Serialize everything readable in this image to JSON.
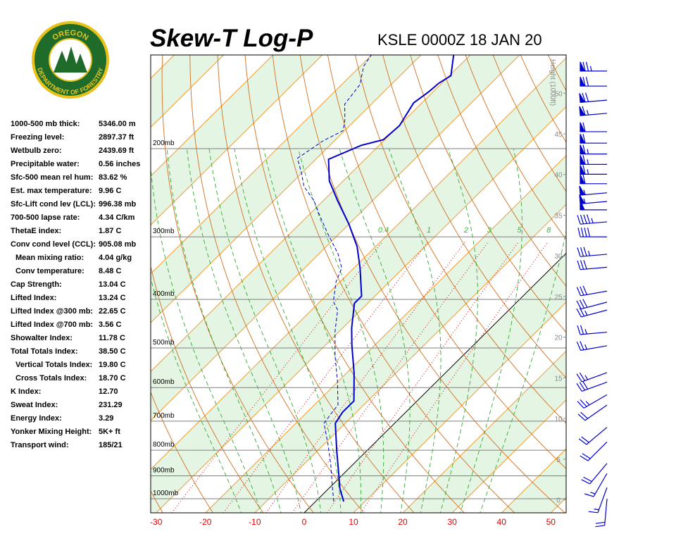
{
  "logo": {
    "top": "OREGON",
    "bottom": "DEPARTMENT OF FORESTRY"
  },
  "indices": [
    {
      "label": "1000-500 mb thick:",
      "value": "5346.00 m"
    },
    {
      "label": "Freezing level:",
      "value": "2897.37 ft"
    },
    {
      "label": "Wetbulb zero:",
      "value": "2439.69 ft"
    },
    {
      "label": "Precipitable water:",
      "value": "0.56 inches"
    },
    {
      "label": "Sfc-500 mean rel hum:",
      "value": "83.62 %"
    },
    {
      "label": "Est. max temperature:",
      "value": "9.96 C"
    },
    {
      "label": "Sfc-Lift cond lev (LCL):",
      "value": "996.38 mb"
    },
    {
      "label": "700-500 lapse rate:",
      "value": "4.34 C/km"
    },
    {
      "label": "ThetaE index:",
      "value": "1.87 C"
    },
    {
      "label": "Conv cond level (CCL):",
      "value": "905.08 mb"
    },
    {
      "label": "Mean mixing ratio:",
      "value": "4.04 g/kg"
    },
    {
      "label": "Conv temperature:",
      "value": "8.48 C"
    },
    {
      "label": "Cap Strength:",
      "value": "13.04 C"
    },
    {
      "label": "Lifted Index:",
      "value": "13.24 C"
    },
    {
      "label": "Lifted Index @300 mb:",
      "value": "22.65 C"
    },
    {
      "label": "Lifted Index @700 mb:",
      "value": "3.56 C"
    },
    {
      "label": "Showalter Index:",
      "value": "11.78 C"
    },
    {
      "label": "Total Totals Index:",
      "value": "38.50 C"
    },
    {
      "label": "Vertical Totals Index:",
      "value": "19.80 C"
    },
    {
      "label": "Cross Totals Index:",
      "value": "18.70 C"
    },
    {
      "label": "K Index:",
      "value": "12.70"
    },
    {
      "label": "Sweat Index:",
      "value": "231.29"
    },
    {
      "label": "Energy Index:",
      "value": "3.29"
    },
    {
      "label": "Yonker Mixing Height:",
      "value": "5K+ ft"
    },
    {
      "label": "Transport wind:",
      "value": "185/21"
    }
  ],
  "chart_data": {
    "type": "skew-t",
    "title": "Skew-T Log-P",
    "subtitle": "KSLE 0000Z 18 JAN 20",
    "y2label": "Height (1000ft)",
    "xlim": [
      -31.1,
      53.1
    ],
    "xticks": [
      -30,
      -20,
      -10,
      0,
      10,
      20,
      30,
      40,
      50
    ],
    "ylim": [
      1067,
      130
    ],
    "log_y": true,
    "yticks": [
      {
        "value": 1000,
        "label": "1000mb"
      },
      {
        "value": 900,
        "label": "900mb"
      },
      {
        "value": 800,
        "label": "800mb"
      },
      {
        "value": 700,
        "label": "700mb"
      },
      {
        "value": 600,
        "label": "600mb"
      },
      {
        "value": 500,
        "label": "500mb"
      },
      {
        "value": 400,
        "label": "400mb"
      },
      {
        "value": 300,
        "label": "300mb"
      },
      {
        "value": 200,
        "label": "200mb"
      }
    ],
    "y2lim": [
      -1.6,
      54.7
    ],
    "y2ticks": [
      0,
      5,
      10,
      15,
      20,
      25,
      30,
      35,
      40,
      45,
      50
    ],
    "mixing_ratios": [
      0.4,
      1,
      2,
      3,
      5,
      8
    ],
    "series": [
      {
        "color": "#0000cc",
        "dashed": false,
        "pressure": [
          1013,
          953,
          884,
          802,
          707,
          672,
          638,
          562,
          494,
          456,
          407,
          394,
          346,
          314,
          283,
          254,
          232,
          210,
          197,
          192,
          180,
          162,
          154,
          148,
          143,
          130
        ],
        "values": [
          5.7,
          2.2,
          -1.4,
          -6.1,
          -12.0,
          -12.8,
          -12.8,
          -18.4,
          -24.6,
          -28.2,
          -32.7,
          -32.7,
          -38.8,
          -43.7,
          -50.0,
          -57.1,
          -62.8,
          -67.4,
          -63.6,
          -60.3,
          -59.9,
          -61.7,
          -60.9,
          -60.6,
          -59.7,
          -63.4
        ]
      },
      {
        "color": "#0000cc",
        "dashed": true,
        "pressure": [
          1013,
          943,
          856,
          777,
          707,
          678,
          650,
          581,
          518,
          463,
          420,
          404,
          369,
          346,
          324,
          294,
          271,
          254,
          238,
          224,
          209,
          199,
          193,
          184,
          175,
          163,
          149,
          137,
          130
        ],
        "values": [
          3.7,
          0.2,
          -4.4,
          -9.3,
          -14.3,
          -14.8,
          -15.2,
          -20.3,
          -25.9,
          -30.9,
          -34.7,
          -37.3,
          -40.8,
          -42.5,
          -46.2,
          -52.7,
          -57.9,
          -61.9,
          -66.8,
          -70.0,
          -73.9,
          -72.9,
          -72.3,
          -70.3,
          -72.2,
          -75.4,
          -76.3,
          -79.3,
          -80.1
        ]
      }
    ],
    "wind": {
      "color": "#0000cc",
      "pressure": [
        140,
        150,
        160,
        170,
        185,
        195,
        205,
        215,
        225,
        235,
        245,
        255,
        265,
        280,
        300,
        325,
        345,
        385,
        405,
        420,
        465,
        495,
        560,
        585,
        620,
        650,
        720,
        770,
        850,
        890,
        950,
        1000
      ],
      "direction": [
        270,
        270,
        265,
        265,
        270,
        270,
        270,
        270,
        270,
        270,
        265,
        265,
        270,
        265,
        270,
        265,
        265,
        260,
        255,
        255,
        265,
        260,
        250,
        250,
        240,
        235,
        230,
        225,
        220,
        210,
        200,
        185
      ],
      "speed": [
        75,
        70,
        70,
        65,
        60,
        60,
        65,
        65,
        65,
        60,
        55,
        55,
        50,
        45,
        40,
        35,
        30,
        30,
        30,
        25,
        25,
        25,
        25,
        30,
        25,
        20,
        20,
        20,
        20,
        15,
        15,
        20
      ]
    }
  }
}
